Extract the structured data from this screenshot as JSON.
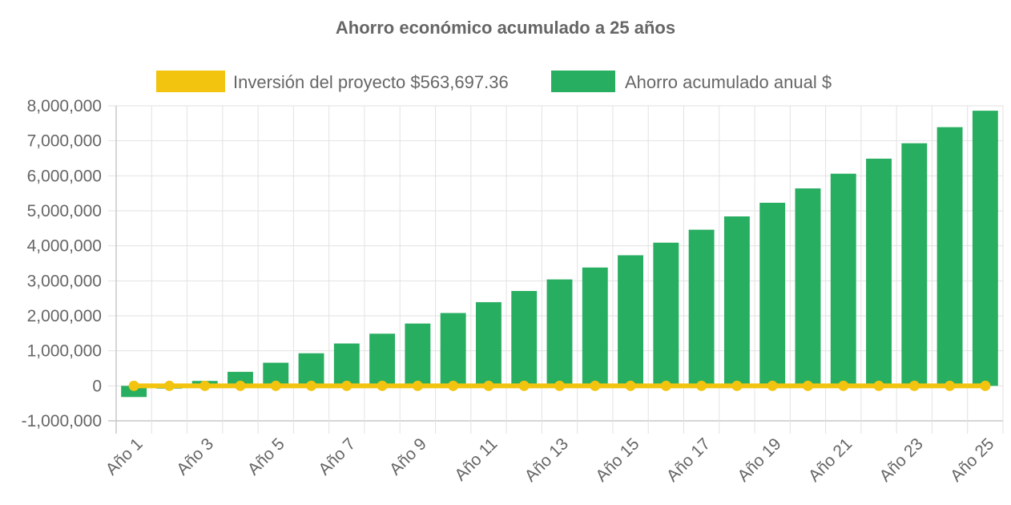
{
  "chart_data": {
    "type": "bar",
    "title": "Ahorro económico acumulado a 25 años",
    "legend_position": "top",
    "grid": true,
    "ylim": [
      -1000000,
      8000000
    ],
    "y_ticks": [
      {
        "value": 8000000,
        "label": "8,000,000"
      },
      {
        "value": 7000000,
        "label": "7,000,000"
      },
      {
        "value": 6000000,
        "label": "6,000,000"
      },
      {
        "value": 5000000,
        "label": "5,000,000"
      },
      {
        "value": 4000000,
        "label": "4,000,000"
      },
      {
        "value": 3000000,
        "label": "3,000,000"
      },
      {
        "value": 2000000,
        "label": "2,000,000"
      },
      {
        "value": 1000000,
        "label": "1,000,000"
      },
      {
        "value": 0,
        "label": "0"
      },
      {
        "value": -1000000,
        "label": "-1,000,000"
      }
    ],
    "categories": [
      "Año 1",
      "Año 2",
      "Año 3",
      "Año 4",
      "Año 5",
      "Año 6",
      "Año 7",
      "Año 8",
      "Año 9",
      "Año 10",
      "Año 11",
      "Año 12",
      "Año 13",
      "Año 14",
      "Año 15",
      "Año 16",
      "Año 17",
      "Año 18",
      "Año 19",
      "Año 20",
      "Año 21",
      "Año 22",
      "Año 23",
      "Año 24",
      "Año 25"
    ],
    "x_tick_labels_shown": [
      "Año 1",
      "Año 3",
      "Año 5",
      "Año 7",
      "Año 9",
      "Año 11",
      "Año 13",
      "Año 15",
      "Año 17",
      "Año 19",
      "Año 21",
      "Año 23",
      "Año 25"
    ],
    "series": [
      {
        "name": "Inversión del proyecto $563,697.36",
        "type": "line",
        "color": "#f2c40f",
        "values": [
          0,
          0,
          0,
          0,
          0,
          0,
          0,
          0,
          0,
          0,
          0,
          0,
          0,
          0,
          0,
          0,
          0,
          0,
          0,
          0,
          0,
          0,
          0,
          0,
          0
        ]
      },
      {
        "name": "Ahorro acumulado anual $",
        "type": "bar",
        "color": "#27ae60",
        "values": [
          -320000,
          -80000,
          140000,
          400000,
          660000,
          930000,
          1210000,
          1490000,
          1780000,
          2080000,
          2390000,
          2710000,
          3040000,
          3380000,
          3730000,
          4090000,
          4460000,
          4840000,
          5230000,
          5640000,
          6060000,
          6490000,
          6930000,
          7390000,
          7860000
        ]
      }
    ]
  }
}
